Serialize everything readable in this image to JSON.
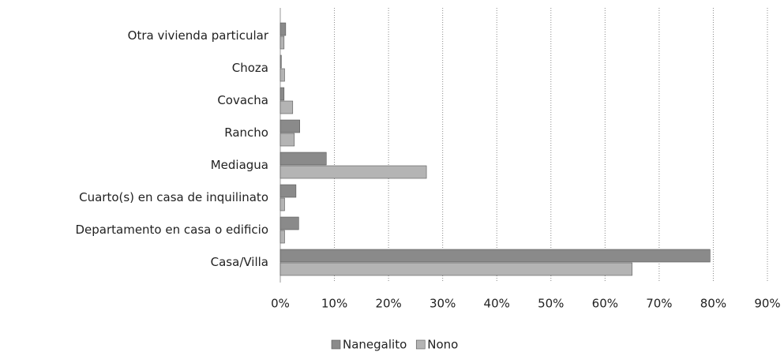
{
  "chart_data": {
    "type": "bar",
    "orientation": "horizontal",
    "categories": [
      "Otra vivienda particular",
      "Choza",
      "Covacha",
      "Rancho",
      "Mediagua",
      "Cuarto(s) en casa de inquilinato",
      "Departamento en casa o edificio",
      "Casa/Villa"
    ],
    "series": [
      {
        "name": "Nanegalito",
        "color": "#8a8a8a",
        "values": [
          1.0,
          0.2,
          0.7,
          3.6,
          8.5,
          2.9,
          3.4,
          79.4
        ]
      },
      {
        "name": "Nono",
        "color": "#b4b4b4",
        "values": [
          0.7,
          0.8,
          2.3,
          2.6,
          27,
          0.8,
          0.8,
          65
        ]
      }
    ],
    "xlim": [
      0,
      90
    ],
    "xticks": [
      {
        "value": 0,
        "label": "0%"
      },
      {
        "value": 10,
        "label": "10%"
      },
      {
        "value": 20,
        "label": "20%"
      },
      {
        "value": 30,
        "label": "30%"
      },
      {
        "value": 40,
        "label": "40%"
      },
      {
        "value": 50,
        "label": "50%"
      },
      {
        "value": 60,
        "label": "60%"
      },
      {
        "value": 70,
        "label": "70%"
      },
      {
        "value": 80,
        "label": "80%"
      },
      {
        "value": 90,
        "label": "90%"
      }
    ],
    "grid": true,
    "legend": "bottom"
  }
}
